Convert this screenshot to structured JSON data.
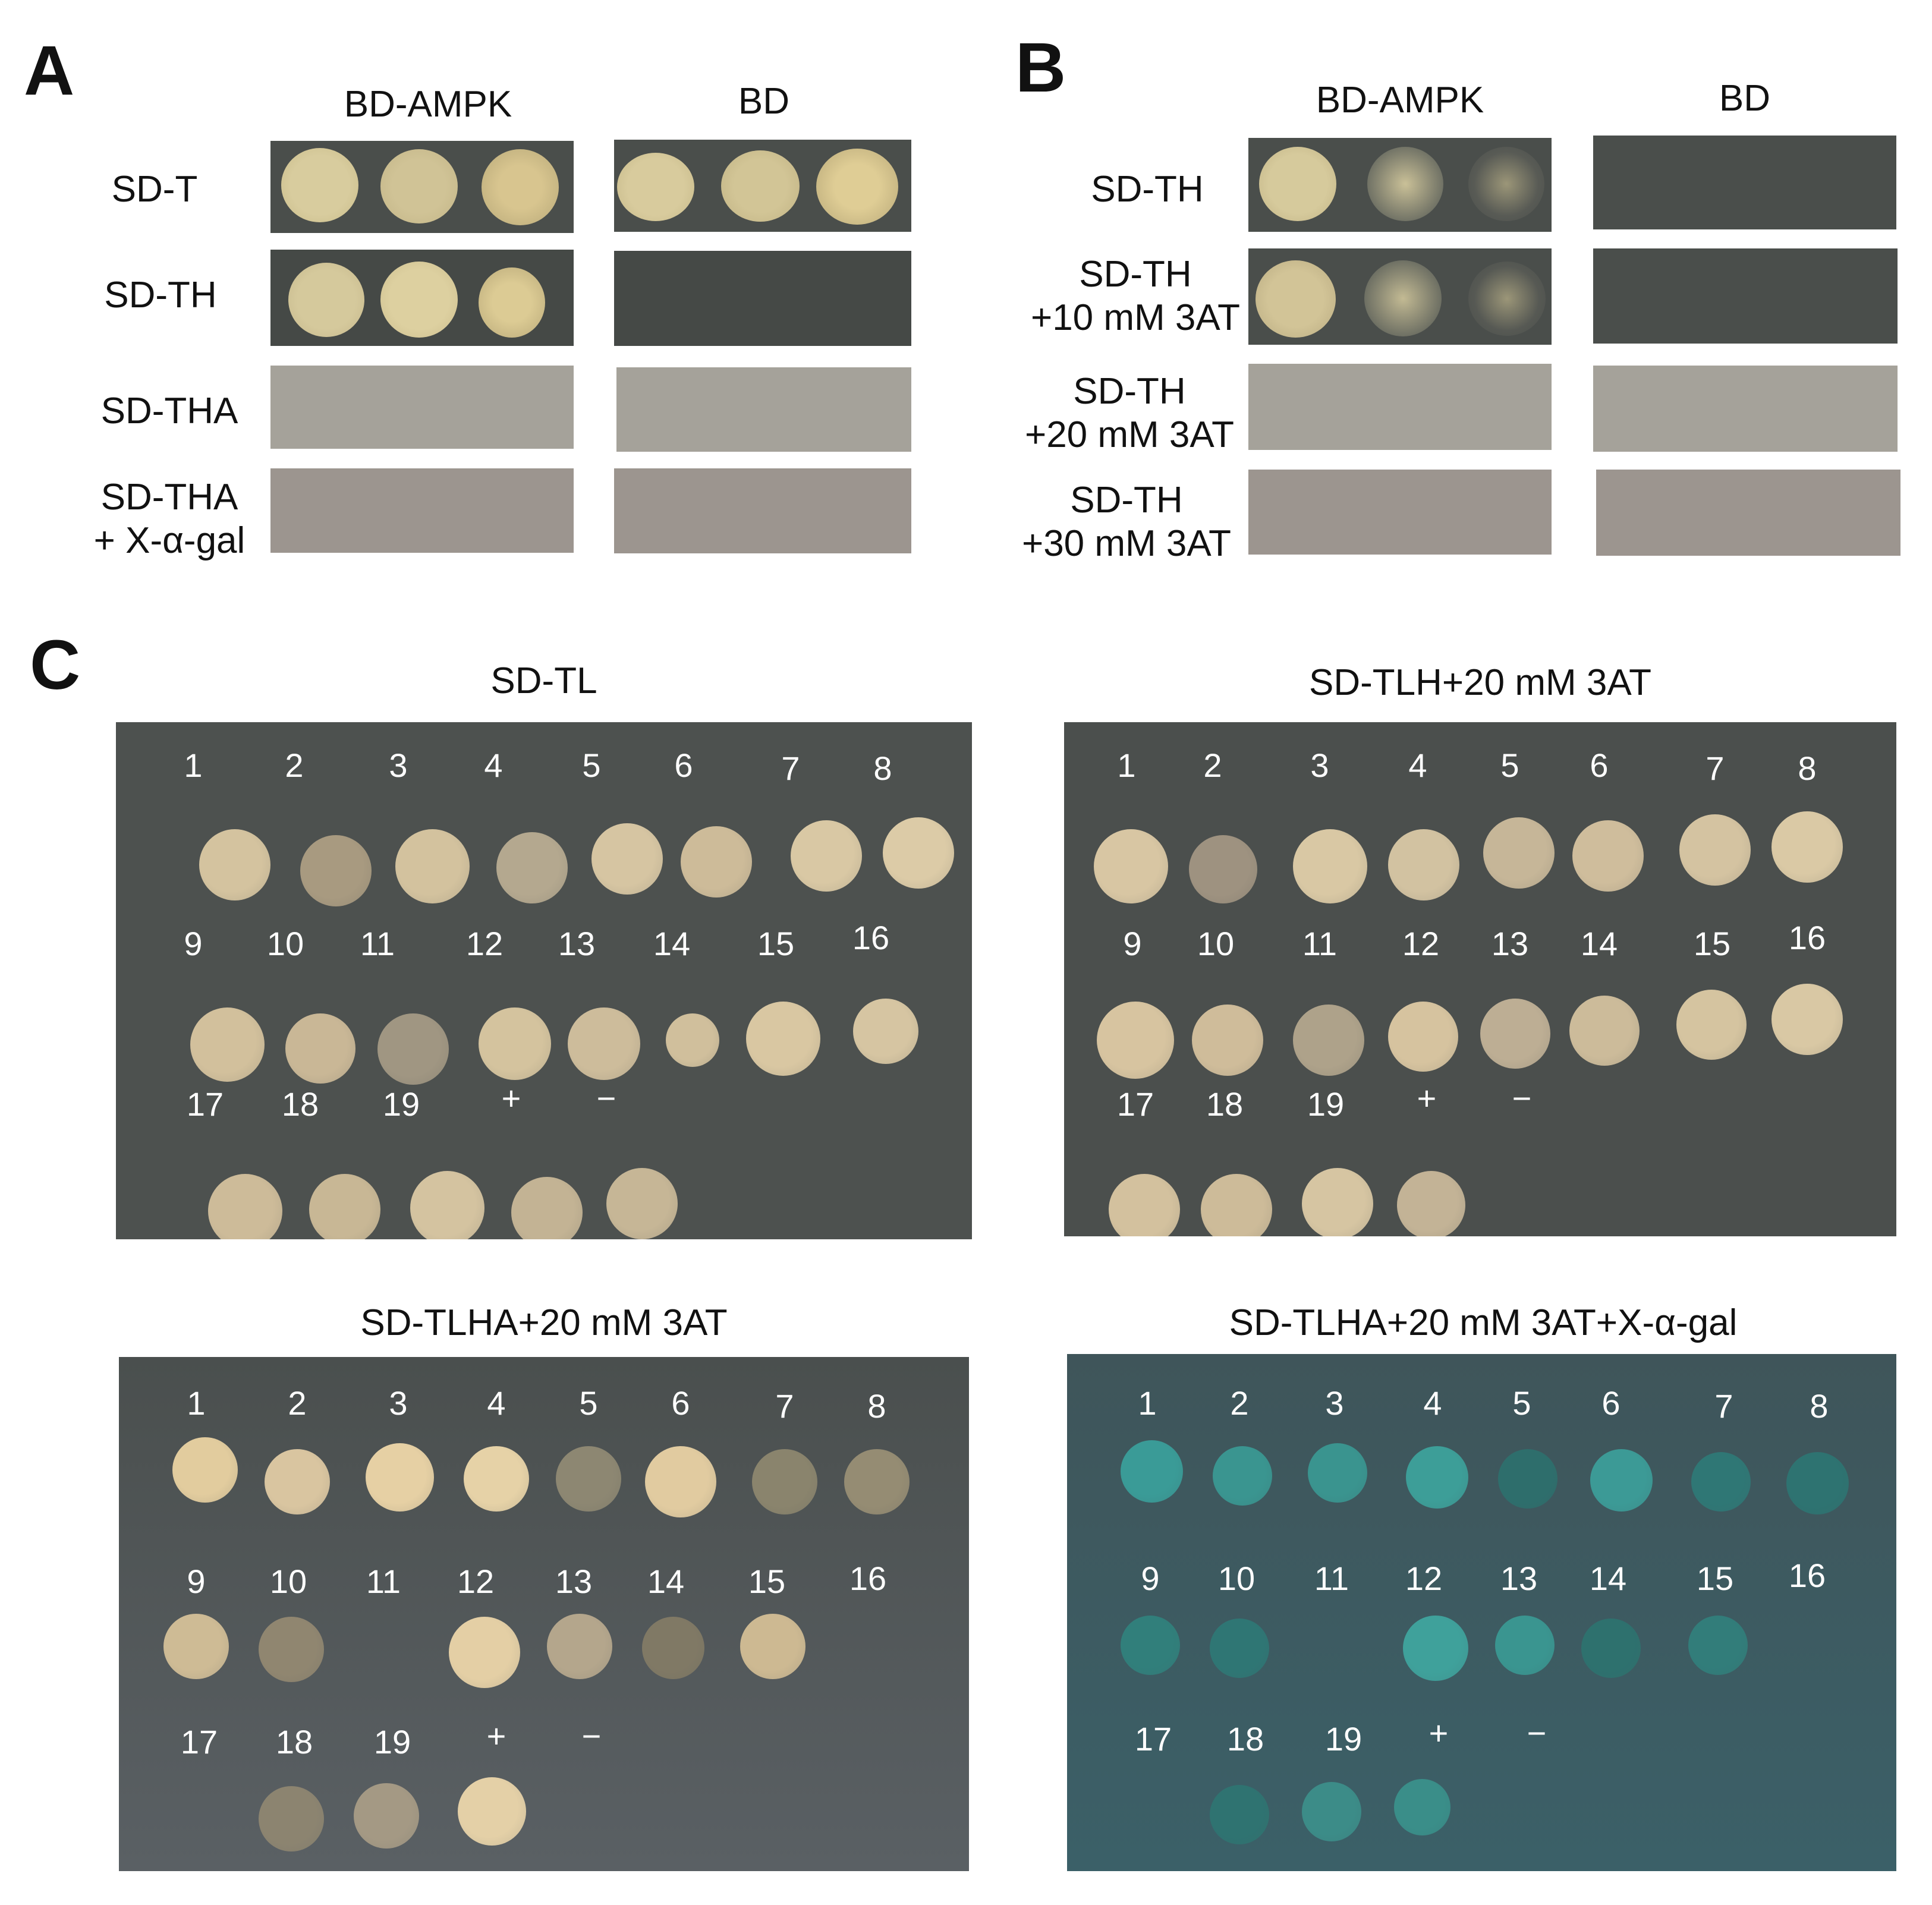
{
  "panels": {
    "A": {
      "letter": "A",
      "columns": [
        "BD-AMPK",
        "BD"
      ],
      "rows": [
        {
          "label": [
            "SD-T"
          ]
        },
        {
          "label": [
            "SD-TH"
          ]
        },
        {
          "label": [
            "SD-THA"
          ]
        },
        {
          "label": [
            "SD-THA",
            "+ X-α-gal"
          ]
        }
      ]
    },
    "B": {
      "letter": "B",
      "columns": [
        "BD-AMPK",
        "BD"
      ],
      "rows": [
        {
          "label": [
            "SD-TH"
          ]
        },
        {
          "label": [
            "SD-TH",
            "+10 mM 3AT"
          ]
        },
        {
          "label": [
            "SD-TH",
            "+20 mM 3AT"
          ]
        },
        {
          "label": [
            "SD-TH",
            "+30 mM 3AT"
          ]
        }
      ]
    },
    "C": {
      "letter": "C",
      "plates": [
        {
          "title": "SD-TL",
          "labels": [
            "1",
            "2",
            "3",
            "4",
            "5",
            "6",
            "7",
            "8",
            "9",
            "10",
            "11",
            "12",
            "13",
            "14",
            "15",
            "16",
            "17",
            "18",
            "19",
            "+",
            "−"
          ]
        },
        {
          "title": "SD-TLH+20 mM 3AT",
          "labels": [
            "1",
            "2",
            "3",
            "4",
            "5",
            "6",
            "7",
            "8",
            "9",
            "10",
            "11",
            "12",
            "13",
            "14",
            "15",
            "16",
            "17",
            "18",
            "19",
            "+",
            "−"
          ]
        },
        {
          "title": "SD-TLHA+20 mM 3AT",
          "labels": [
            "1",
            "2",
            "3",
            "4",
            "5",
            "6",
            "7",
            "8",
            "9",
            "10",
            "11",
            "12",
            "13",
            "14",
            "15",
            "16",
            "17",
            "18",
            "19",
            "+",
            "−"
          ]
        },
        {
          "title": "SD-TLHA+20 mM 3AT+X-α-gal",
          "labels": [
            "1",
            "2",
            "3",
            "4",
            "5",
            "6",
            "7",
            "8",
            "9",
            "10",
            "11",
            "12",
            "13",
            "14",
            "15",
            "16",
            "17",
            "18",
            "19",
            "+",
            "−"
          ]
        }
      ]
    }
  },
  "colors": {
    "colony_cream": "#d8c8a3",
    "colony_blue": "#3a9a94",
    "plate_dark": "#4b4f4d",
    "plate_blue": "#3f5a60"
  }
}
